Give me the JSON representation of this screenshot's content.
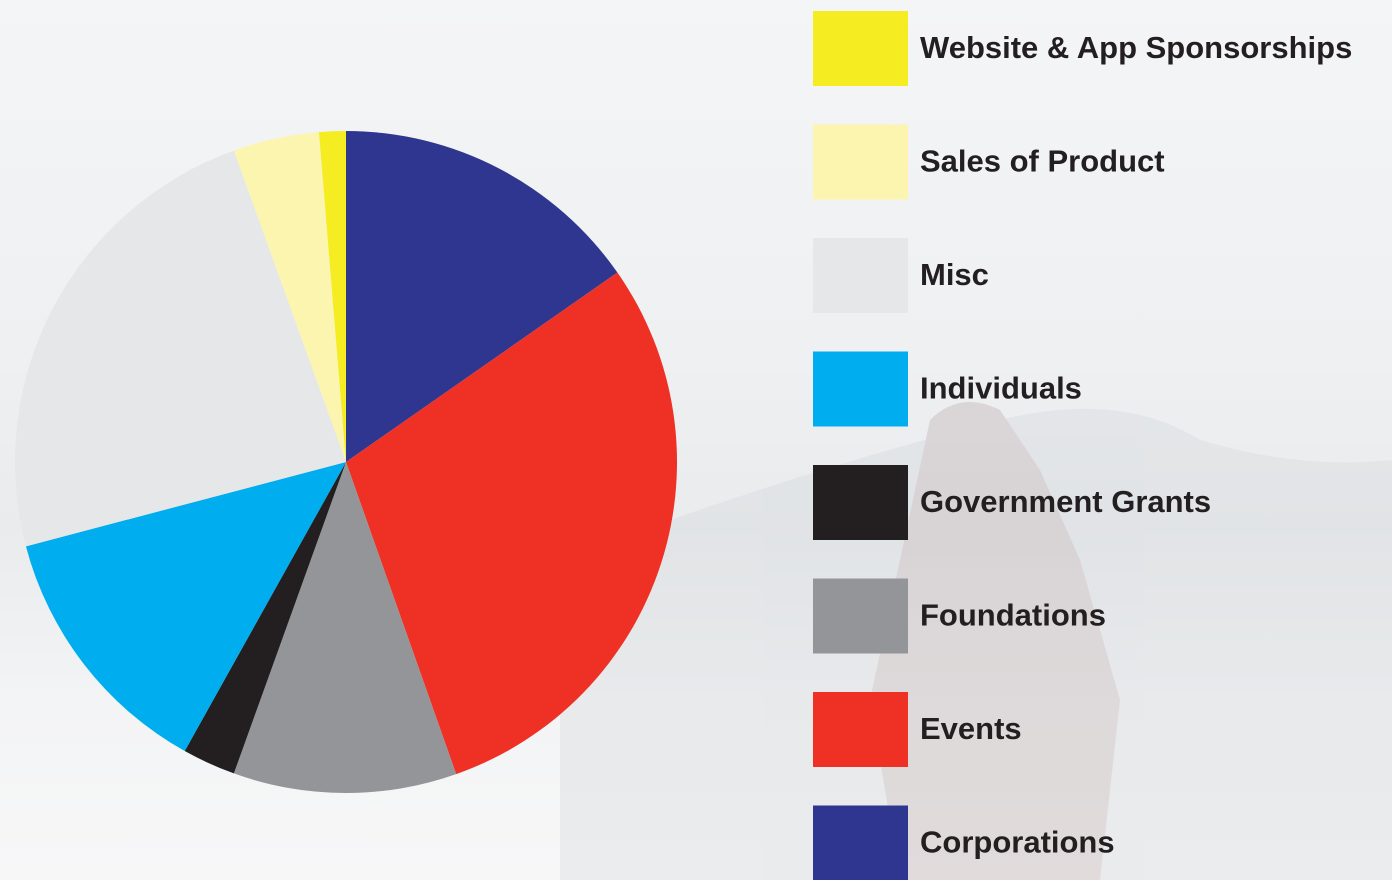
{
  "chart_data": {
    "type": "pie",
    "categories": [
      "Corporations",
      "Events",
      "Foundations",
      "Government Grants",
      "Individuals",
      "Misc",
      "Sales of Product",
      "Website & App Sponsorships"
    ],
    "values": [
      15.3,
      29.3,
      10.9,
      2.6,
      12.8,
      23.6,
      4.2,
      1.3
    ],
    "colors": [
      "#2e3690",
      "#ee3124",
      "#939598",
      "#231f20",
      "#00aeef",
      "#e6e7e8",
      "#fbf5b0",
      "#f5ec22"
    ]
  }
}
